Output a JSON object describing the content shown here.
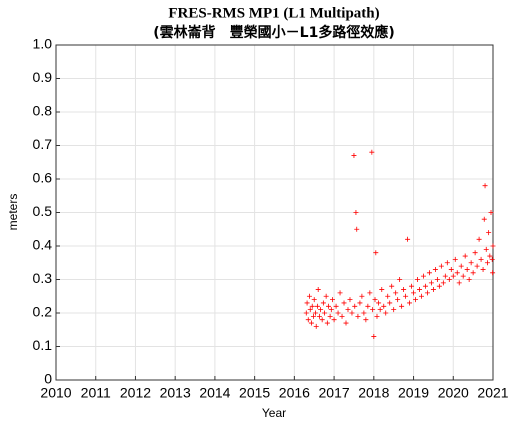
{
  "chart_data": {
    "type": "scatter",
    "title": "FRES-RMS MP1 (L1 Multipath)",
    "subtitle": "(雲林崙背　豐榮國小－L1多路徑效應)",
    "x_label": "Year",
    "y_label": "meters",
    "xlim": [
      2010,
      2021
    ],
    "ylim": [
      0,
      1
    ],
    "xticks": [
      2010,
      2011,
      2012,
      2013,
      2014,
      2015,
      2016,
      2017,
      2018,
      2019,
      2020,
      2021
    ],
    "yticks": [
      0,
      0.1,
      0.2,
      0.3,
      0.4,
      0.5,
      0.6,
      0.7,
      0.8,
      0.9,
      {
        "value": 1,
        "label": "1.0"
      }
    ],
    "grid": true,
    "series": [
      {
        "color": "#ff0000",
        "x": [
          2016.3,
          2016.32,
          2016.35,
          2016.38,
          2016.4,
          2016.43,
          2016.45,
          2016.48,
          2016.5,
          2016.53,
          2016.55,
          2016.58,
          2016.6,
          2016.63,
          2016.66,
          2016.7,
          2016.73,
          2016.76,
          2016.8,
          2016.83,
          2016.86,
          2016.9,
          2016.93,
          2016.96,
          2017.0,
          2017.05,
          2017.1,
          2017.15,
          2017.2,
          2017.25,
          2017.3,
          2017.35,
          2017.4,
          2017.45,
          2017.5,
          2017.52,
          2017.55,
          2017.57,
          2017.6,
          2017.65,
          2017.7,
          2017.75,
          2017.8,
          2017.85,
          2017.9,
          2017.95,
          2017.97,
          2018.0,
          2018.03,
          2018.05,
          2018.08,
          2018.12,
          2018.16,
          2018.2,
          2018.25,
          2018.3,
          2018.35,
          2018.4,
          2018.45,
          2018.5,
          2018.55,
          2018.6,
          2018.65,
          2018.7,
          2018.75,
          2018.8,
          2018.85,
          2018.9,
          2018.95,
          2019.0,
          2019.05,
          2019.1,
          2019.15,
          2019.2,
          2019.25,
          2019.3,
          2019.35,
          2019.4,
          2019.45,
          2019.5,
          2019.55,
          2019.6,
          2019.65,
          2019.7,
          2019.75,
          2019.8,
          2019.85,
          2019.9,
          2019.95,
          2020.0,
          2020.05,
          2020.1,
          2020.15,
          2020.2,
          2020.25,
          2020.3,
          2020.35,
          2020.4,
          2020.45,
          2020.5,
          2020.55,
          2020.6,
          2020.65,
          2020.7,
          2020.75,
          2020.78,
          2020.8,
          2020.83,
          2020.86,
          2020.89,
          2020.92,
          2020.95,
          2020.98,
          2021.0,
          2020.99
        ],
        "values": [
          0.2,
          0.23,
          0.18,
          0.25,
          0.21,
          0.17,
          0.22,
          0.19,
          0.24,
          0.2,
          0.16,
          0.22,
          0.27,
          0.19,
          0.21,
          0.18,
          0.23,
          0.2,
          0.25,
          0.17,
          0.22,
          0.19,
          0.21,
          0.24,
          0.18,
          0.22,
          0.2,
          0.26,
          0.19,
          0.23,
          0.17,
          0.21,
          0.24,
          0.2,
          0.67,
          0.22,
          0.5,
          0.45,
          0.19,
          0.23,
          0.25,
          0.2,
          0.18,
          0.22,
          0.26,
          0.68,
          0.21,
          0.13,
          0.24,
          0.38,
          0.19,
          0.23,
          0.21,
          0.27,
          0.22,
          0.2,
          0.25,
          0.23,
          0.28,
          0.21,
          0.26,
          0.24,
          0.3,
          0.22,
          0.27,
          0.25,
          0.42,
          0.23,
          0.28,
          0.26,
          0.24,
          0.3,
          0.27,
          0.25,
          0.31,
          0.28,
          0.26,
          0.32,
          0.29,
          0.27,
          0.33,
          0.3,
          0.28,
          0.34,
          0.29,
          0.31,
          0.35,
          0.3,
          0.33,
          0.31,
          0.36,
          0.32,
          0.29,
          0.34,
          0.31,
          0.37,
          0.33,
          0.3,
          0.35,
          0.32,
          0.38,
          0.34,
          0.42,
          0.36,
          0.33,
          0.48,
          0.58,
          0.39,
          0.35,
          0.44,
          0.37,
          0.5,
          0.36,
          0.4,
          0.32
        ]
      }
    ]
  }
}
